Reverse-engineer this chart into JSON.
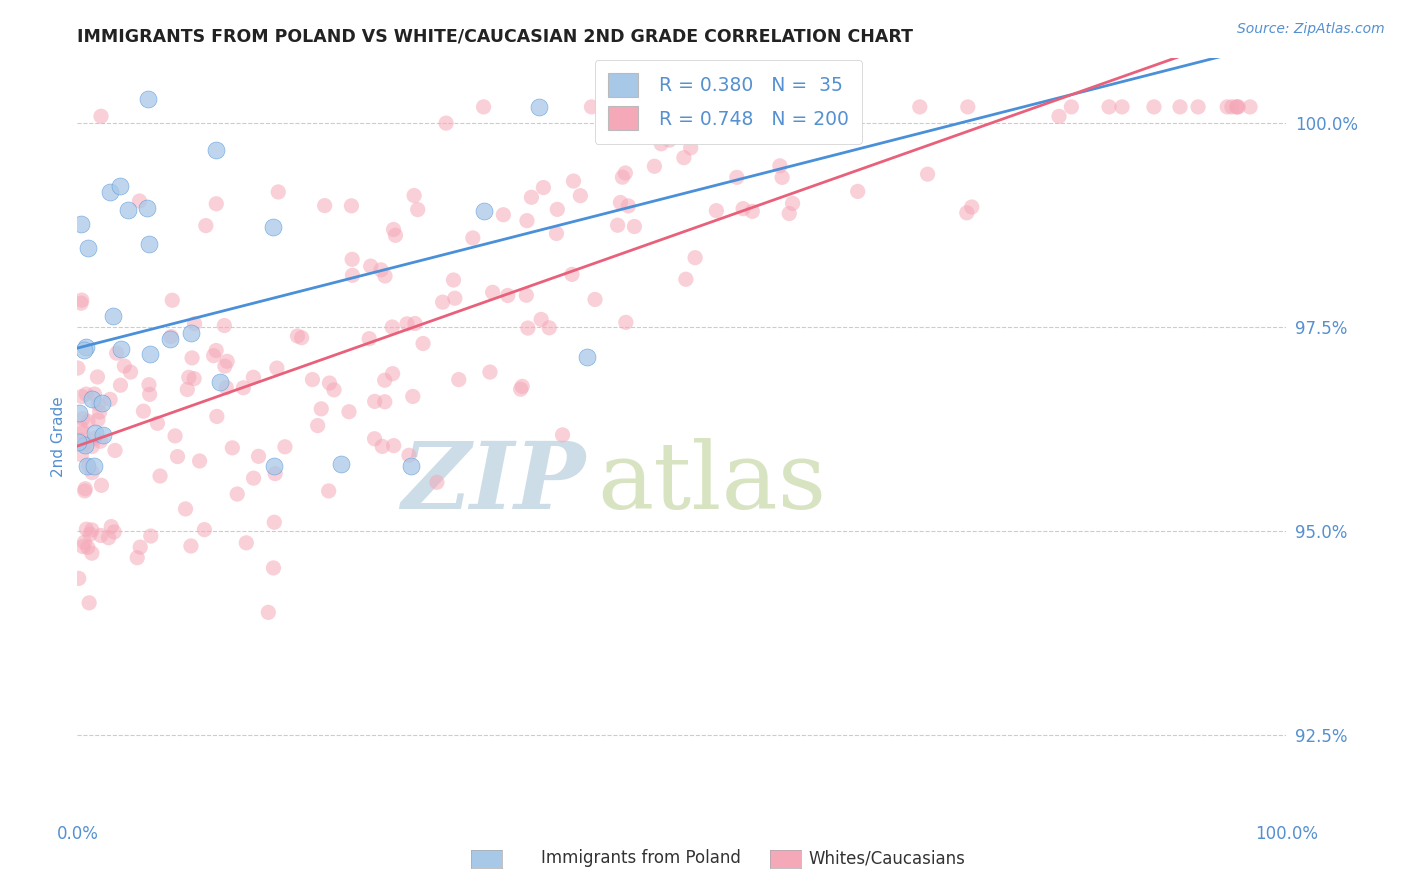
{
  "title": "IMMIGRANTS FROM POLAND VS WHITE/CAUCASIAN 2ND GRADE CORRELATION CHART",
  "source": "Source: ZipAtlas.com",
  "ylabel": "2nd Grade",
  "y_ticks": [
    92.5,
    95.0,
    97.5,
    100.0
  ],
  "y_tick_labels": [
    "92.5%",
    "95.0%",
    "97.5%",
    "100.0%"
  ],
  "x_min": 0.0,
  "x_max": 100.0,
  "y_min": 91.5,
  "y_max": 100.8,
  "blue_R": 0.38,
  "blue_N": 35,
  "pink_R": 0.748,
  "pink_N": 200,
  "blue_color": "#a8c8e8",
  "pink_color": "#f5a8b8",
  "blue_line_color": "#4a90d9",
  "pink_line_color": "#e8607a",
  "title_color": "#222222",
  "axis_label_color": "#5590d0",
  "watermark_zip_color": "#ccdde8",
  "watermark_atlas_color": "#c8d8a8",
  "grid_color": "#cccccc",
  "background_color": "#ffffff",
  "blue_scatter_seed": 77,
  "pink_scatter_seed": 42
}
